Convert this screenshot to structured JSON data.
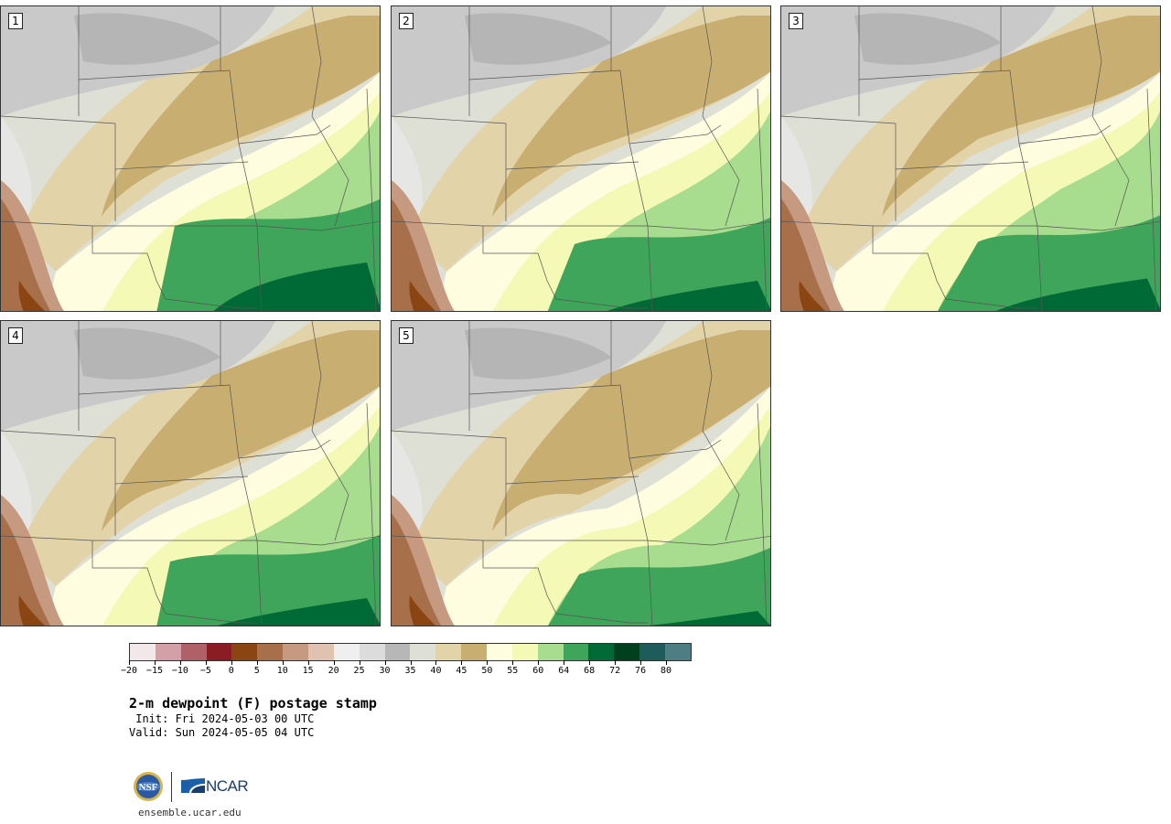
{
  "panels": [
    {
      "label": "1"
    },
    {
      "label": "2"
    },
    {
      "label": "3"
    },
    {
      "label": "4"
    },
    {
      "label": "5"
    }
  ],
  "colorbar": {
    "colors": [
      "#f2e8ea",
      "#d4a0a8",
      "#b06068",
      "#8c1c24",
      "#8a4512",
      "#a8704a",
      "#c59a80",
      "#dfc3b0",
      "#efefef",
      "#dcdcdc",
      "#b7b7b7",
      "#dedfd5",
      "#e3d3a8",
      "#c9ae72",
      "#fefde0",
      "#f4f9b5",
      "#a8dc8e",
      "#3fa55a",
      "#006a36",
      "#00401f",
      "#1e5c5c",
      "#4e7e84"
    ],
    "tick_labels": [
      "−20",
      "−15",
      "−10",
      "−5",
      "0",
      "5",
      "10",
      "15",
      "20",
      "25",
      "30",
      "35",
      "40",
      "45",
      "50",
      "55",
      "60",
      "64",
      "68",
      "72",
      "76",
      "80"
    ]
  },
  "title": "2-m dewpoint (F) postage stamp",
  "init": " Init: Fri 2024-05-03 00 UTC",
  "valid": "Valid: Sun 2024-05-05 04 UTC",
  "logos": {
    "nsf": "NSF",
    "ncar": "NCAR"
  },
  "url": "ensemble.ucar.edu"
}
